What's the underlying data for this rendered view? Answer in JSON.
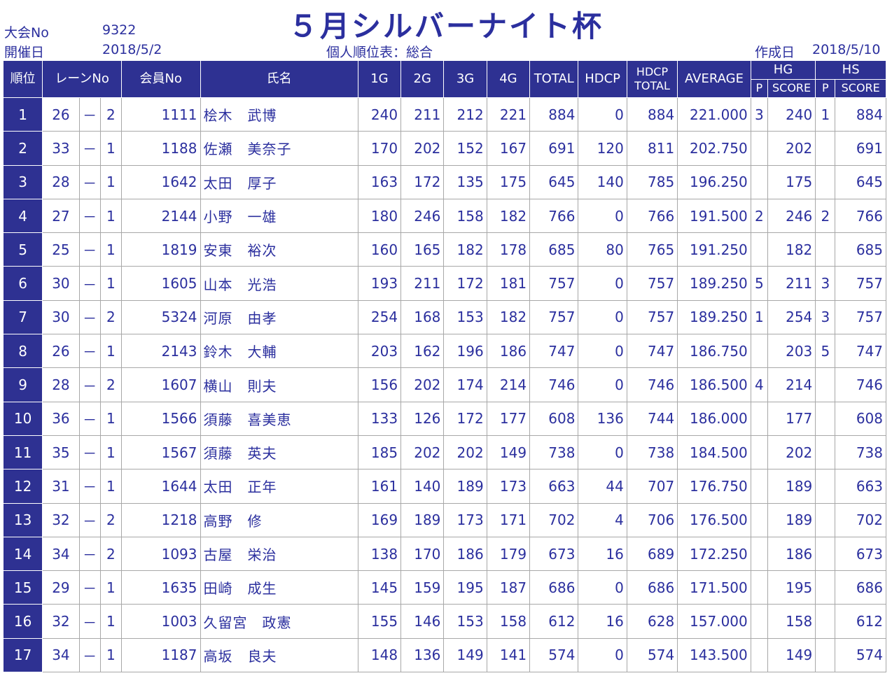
{
  "header": {
    "tournament_no_label": "大会No",
    "tournament_no": "9322",
    "held_label": "開催日",
    "held_date": "2018/5/2",
    "title": "５月シルバーナイト杯",
    "subtitle": "個人順位表：総合",
    "created_label": "作成日",
    "created_date": "2018/5/10"
  },
  "columns": {
    "rank": "順位",
    "lane": "レーンNo",
    "member": "会員No",
    "name": "氏名",
    "g1": "1G",
    "g2": "2G",
    "g3": "3G",
    "g4": "4G",
    "total": "TOTAL",
    "hdcp": "HDCP",
    "hdcp_total_1": "HDCP",
    "hdcp_total_2": "TOTAL",
    "average": "AVERAGE",
    "hg": "HG",
    "hs": "HS",
    "p": "P",
    "score": "SCORE"
  },
  "rows": [
    {
      "rank": "1",
      "lane": "26",
      "dash": "－",
      "side": "2",
      "member": "1111",
      "name": "桧木　武博",
      "g1": "240",
      "g2": "211",
      "g3": "212",
      "g4": "221",
      "total": "884",
      "hdcp": "0",
      "hdcp_total": "884",
      "average": "221.000",
      "hg_p": "3",
      "hg_score": "240",
      "hs_p": "1",
      "hs_score": "884"
    },
    {
      "rank": "2",
      "lane": "33",
      "dash": "－",
      "side": "1",
      "member": "1188",
      "name": "佐瀬　美奈子",
      "g1": "170",
      "g2": "202",
      "g3": "152",
      "g4": "167",
      "total": "691",
      "hdcp": "120",
      "hdcp_total": "811",
      "average": "202.750",
      "hg_p": "",
      "hg_score": "202",
      "hs_p": "",
      "hs_score": "691"
    },
    {
      "rank": "3",
      "lane": "28",
      "dash": "－",
      "side": "1",
      "member": "1642",
      "name": "太田　厚子",
      "g1": "163",
      "g2": "172",
      "g3": "135",
      "g4": "175",
      "total": "645",
      "hdcp": "140",
      "hdcp_total": "785",
      "average": "196.250",
      "hg_p": "",
      "hg_score": "175",
      "hs_p": "",
      "hs_score": "645"
    },
    {
      "rank": "4",
      "lane": "27",
      "dash": "－",
      "side": "1",
      "member": "2144",
      "name": "小野　一雄",
      "g1": "180",
      "g2": "246",
      "g3": "158",
      "g4": "182",
      "total": "766",
      "hdcp": "0",
      "hdcp_total": "766",
      "average": "191.500",
      "hg_p": "2",
      "hg_score": "246",
      "hs_p": "2",
      "hs_score": "766"
    },
    {
      "rank": "5",
      "lane": "25",
      "dash": "－",
      "side": "1",
      "member": "1819",
      "name": "安東　裕次",
      "g1": "160",
      "g2": "165",
      "g3": "182",
      "g4": "178",
      "total": "685",
      "hdcp": "80",
      "hdcp_total": "765",
      "average": "191.250",
      "hg_p": "",
      "hg_score": "182",
      "hs_p": "",
      "hs_score": "685"
    },
    {
      "rank": "6",
      "lane": "30",
      "dash": "－",
      "side": "1",
      "member": "1605",
      "name": "山本　光浩",
      "g1": "193",
      "g2": "211",
      "g3": "172",
      "g4": "181",
      "total": "757",
      "hdcp": "0",
      "hdcp_total": "757",
      "average": "189.250",
      "hg_p": "5",
      "hg_score": "211",
      "hs_p": "3",
      "hs_score": "757"
    },
    {
      "rank": "7",
      "lane": "30",
      "dash": "－",
      "side": "2",
      "member": "5324",
      "name": "河原　由孝",
      "g1": "254",
      "g2": "168",
      "g3": "153",
      "g4": "182",
      "total": "757",
      "hdcp": "0",
      "hdcp_total": "757",
      "average": "189.250",
      "hg_p": "1",
      "hg_score": "254",
      "hs_p": "3",
      "hs_score": "757"
    },
    {
      "rank": "8",
      "lane": "26",
      "dash": "－",
      "side": "1",
      "member": "2143",
      "name": "鈴木　大輔",
      "g1": "203",
      "g2": "162",
      "g3": "196",
      "g4": "186",
      "total": "747",
      "hdcp": "0",
      "hdcp_total": "747",
      "average": "186.750",
      "hg_p": "",
      "hg_score": "203",
      "hs_p": "5",
      "hs_score": "747"
    },
    {
      "rank": "9",
      "lane": "28",
      "dash": "－",
      "side": "2",
      "member": "1607",
      "name": "横山　則夫",
      "g1": "156",
      "g2": "202",
      "g3": "174",
      "g4": "214",
      "total": "746",
      "hdcp": "0",
      "hdcp_total": "746",
      "average": "186.500",
      "hg_p": "4",
      "hg_score": "214",
      "hs_p": "",
      "hs_score": "746"
    },
    {
      "rank": "10",
      "lane": "36",
      "dash": "－",
      "side": "1",
      "member": "1566",
      "name": "須藤　喜美恵",
      "g1": "133",
      "g2": "126",
      "g3": "172",
      "g4": "177",
      "total": "608",
      "hdcp": "136",
      "hdcp_total": "744",
      "average": "186.000",
      "hg_p": "",
      "hg_score": "177",
      "hs_p": "",
      "hs_score": "608"
    },
    {
      "rank": "11",
      "lane": "35",
      "dash": "－",
      "side": "1",
      "member": "1567",
      "name": "須藤　英夫",
      "g1": "185",
      "g2": "202",
      "g3": "202",
      "g4": "149",
      "total": "738",
      "hdcp": "0",
      "hdcp_total": "738",
      "average": "184.500",
      "hg_p": "",
      "hg_score": "202",
      "hs_p": "",
      "hs_score": "738"
    },
    {
      "rank": "12",
      "lane": "31",
      "dash": "－",
      "side": "1",
      "member": "1644",
      "name": "太田　正年",
      "g1": "161",
      "g2": "140",
      "g3": "189",
      "g4": "173",
      "total": "663",
      "hdcp": "44",
      "hdcp_total": "707",
      "average": "176.750",
      "hg_p": "",
      "hg_score": "189",
      "hs_p": "",
      "hs_score": "663"
    },
    {
      "rank": "13",
      "lane": "32",
      "dash": "－",
      "side": "2",
      "member": "1218",
      "name": "高野　修",
      "g1": "169",
      "g2": "189",
      "g3": "173",
      "g4": "171",
      "total": "702",
      "hdcp": "4",
      "hdcp_total": "706",
      "average": "176.500",
      "hg_p": "",
      "hg_score": "189",
      "hs_p": "",
      "hs_score": "702"
    },
    {
      "rank": "14",
      "lane": "34",
      "dash": "－",
      "side": "2",
      "member": "1093",
      "name": "古屋　栄治",
      "g1": "138",
      "g2": "170",
      "g3": "186",
      "g4": "179",
      "total": "673",
      "hdcp": "16",
      "hdcp_total": "689",
      "average": "172.250",
      "hg_p": "",
      "hg_score": "186",
      "hs_p": "",
      "hs_score": "673"
    },
    {
      "rank": "15",
      "lane": "29",
      "dash": "－",
      "side": "1",
      "member": "1635",
      "name": "田崎　成生",
      "g1": "145",
      "g2": "159",
      "g3": "195",
      "g4": "187",
      "total": "686",
      "hdcp": "0",
      "hdcp_total": "686",
      "average": "171.500",
      "hg_p": "",
      "hg_score": "195",
      "hs_p": "",
      "hs_score": "686"
    },
    {
      "rank": "16",
      "lane": "32",
      "dash": "－",
      "side": "1",
      "member": "1003",
      "name": "久留宮　政憲",
      "g1": "155",
      "g2": "146",
      "g3": "153",
      "g4": "158",
      "total": "612",
      "hdcp": "16",
      "hdcp_total": "628",
      "average": "157.000",
      "hg_p": "",
      "hg_score": "158",
      "hs_p": "",
      "hs_score": "612"
    },
    {
      "rank": "17",
      "lane": "34",
      "dash": "－",
      "side": "1",
      "member": "1187",
      "name": "高坂　良夫",
      "g1": "148",
      "g2": "136",
      "g3": "149",
      "g4": "141",
      "total": "574",
      "hdcp": "0",
      "hdcp_total": "574",
      "average": "143.500",
      "hg_p": "",
      "hg_score": "149",
      "hs_p": "",
      "hs_score": "574"
    }
  ]
}
